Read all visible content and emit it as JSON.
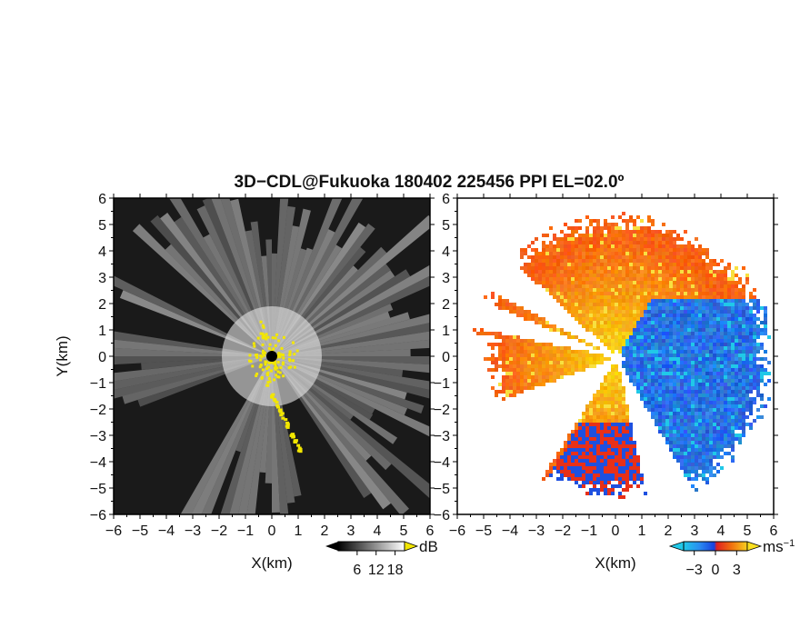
{
  "title": "3D−CDL@Fukuoka 180402 225456 PPI EL=02.0º",
  "chart_data": [
    {
      "type": "heatmap",
      "panel": "left",
      "quantity": "SNR",
      "xlabel": "X(km)",
      "ylabel": "Y(km)",
      "xlim": [
        -6,
        6
      ],
      "ylim": [
        -6,
        6
      ],
      "xticks": [
        "−6",
        "−5",
        "−4",
        "−3",
        "−2",
        "−1",
        "0",
        "1",
        "2",
        "3",
        "4",
        "5",
        "6"
      ],
      "yticks": [
        "6",
        "5",
        "4",
        "3",
        "2",
        "1",
        "0",
        "−1",
        "−2",
        "−3",
        "−4",
        "−5",
        "−6"
      ],
      "colorbar": {
        "unit": "dB",
        "ticks": [
          "6",
          "12",
          "18"
        ],
        "range": [
          0,
          21
        ]
      },
      "highlight_color": "#f2e600",
      "background_color": "#1a1a1a"
    },
    {
      "type": "heatmap",
      "panel": "right",
      "quantity": "Doppler velocity",
      "xlabel": "X(km)",
      "xlim": [
        -6,
        6
      ],
      "ylim": [
        -6,
        6
      ],
      "xticks": [
        "−6",
        "−5",
        "−4",
        "−3",
        "−2",
        "−1",
        "0",
        "1",
        "2",
        "3",
        "4",
        "5",
        "6"
      ],
      "yticks": [
        "6",
        "5",
        "4",
        "3",
        "2",
        "1",
        "0",
        "−1",
        "−2",
        "−3",
        "−4",
        "−5",
        "−6"
      ],
      "colorbar": {
        "unit": "ms",
        "unit_exponent": "−1",
        "ticks": [
          "−3",
          "0",
          "3"
        ],
        "range": [
          -4.5,
          4.5
        ]
      },
      "approaching_color": "#1e6cf0",
      "receding_color": "#f06a10"
    }
  ]
}
